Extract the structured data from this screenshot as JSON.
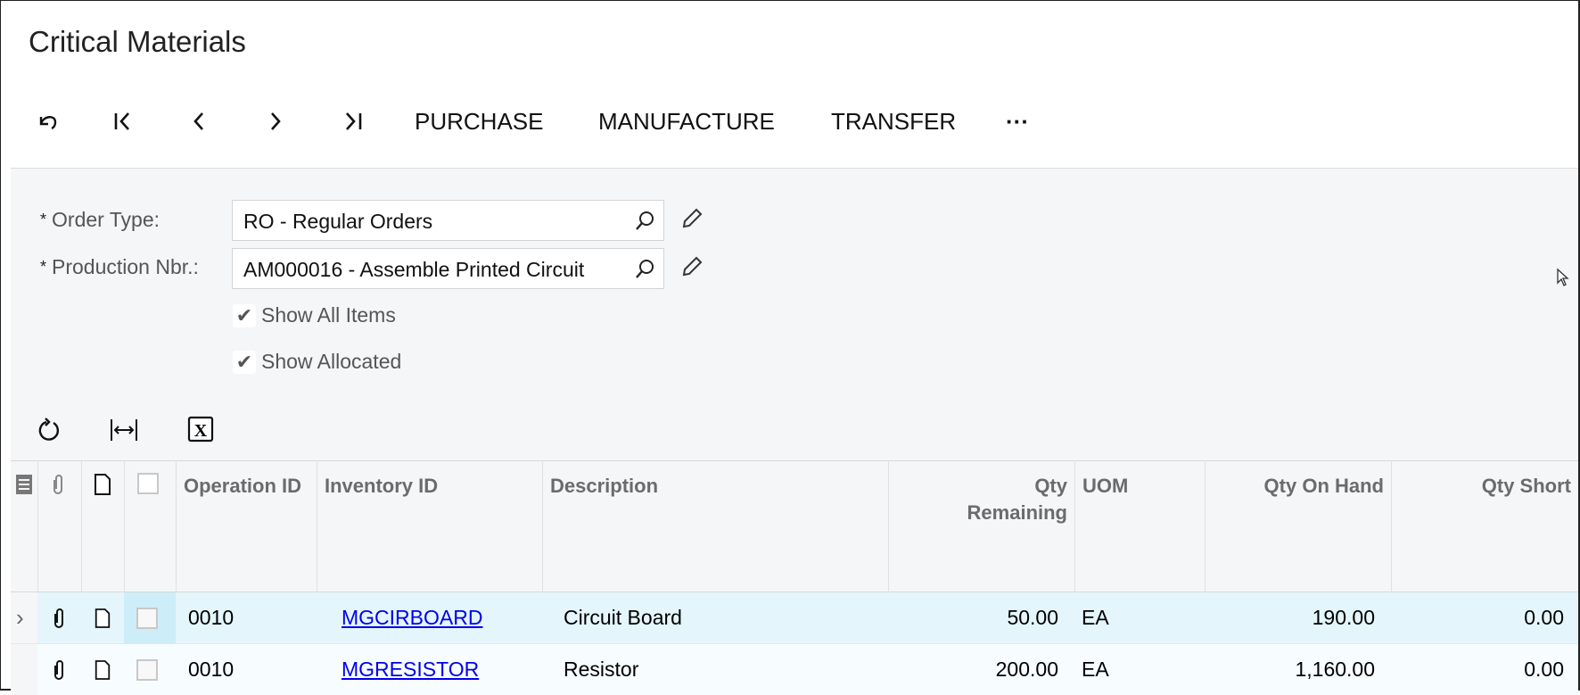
{
  "page": {
    "title": "Critical Materials"
  },
  "toolbar": {
    "icons": [
      "undo-icon",
      "first-icon",
      "previous-icon",
      "next-icon",
      "last-icon"
    ],
    "purchase": "PURCHASE",
    "manufacture": "MANUFACTURE",
    "transfer": "TRANSFER",
    "more": "···"
  },
  "form": {
    "order_type_label": "Order Type:",
    "order_type_value": "RO - Regular Orders",
    "production_nbr_label": "Production Nbr.:",
    "production_nbr_value": "AM000016 - Assemble Printed Circuit",
    "required_mark": "*",
    "show_all_items": {
      "label": "Show All Items",
      "checked": true
    },
    "show_allocated": {
      "label": "Show Allocated",
      "checked": true
    }
  },
  "grid": {
    "toolbar_icons": [
      "refresh-icon",
      "fit-columns-icon",
      "excel-export-icon"
    ],
    "columns": [
      "Operation ID",
      "Inventory ID",
      "Description",
      "Qty Remaining",
      "UOM",
      "Qty On Hand",
      "Qty Short"
    ],
    "rows": [
      {
        "operation": "0010",
        "inventory": "MGCIRBOARD",
        "description": "Circuit Board",
        "qty_remaining": "50.00",
        "uom": "EA",
        "qty_on_hand": "190.00",
        "qty_short": "0.00",
        "selected": true
      },
      {
        "operation": "0010",
        "inventory": "MGRESISTOR",
        "description": "Resistor",
        "qty_remaining": "200.00",
        "uom": "EA",
        "qty_on_hand": "1,160.00",
        "qty_short": "0.00",
        "selected": false
      }
    ]
  },
  "colors": {
    "selected_row": "#e4f6fb",
    "selected_cell": "#cdeef8",
    "header_text": "#6b6b6b",
    "link": "#0000ee",
    "panel": "#f5f6f8"
  }
}
